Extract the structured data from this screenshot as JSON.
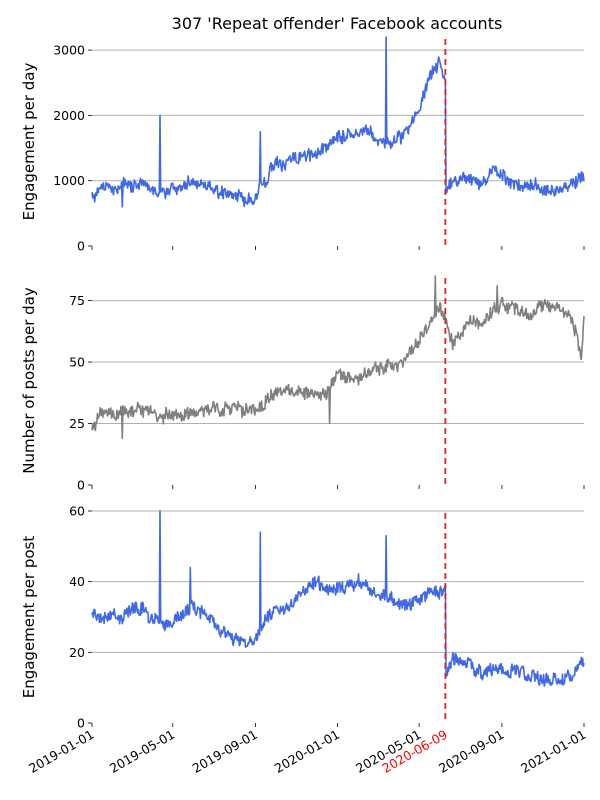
{
  "chart_data": [
    {
      "type": "line",
      "title": "307 'Repeat offender' Facebook accounts",
      "ylabel": "Engagement per day",
      "xlabel": "",
      "ylim": [
        0,
        3200
      ],
      "yticks": [
        0,
        1000,
        2000,
        3000
      ],
      "grid": "horizontal",
      "color": "#4169e1",
      "series": [
        {
          "x": [
            "2019-01-01",
            "2019-01-15",
            "2019-02-01",
            "2019-02-15",
            "2019-03-01",
            "2019-03-15",
            "2019-04-01",
            "2019-04-15",
            "2019-05-01",
            "2019-05-15",
            "2019-06-01",
            "2019-06-15",
            "2019-07-01",
            "2019-07-15",
            "2019-08-01",
            "2019-08-15",
            "2019-09-01",
            "2019-09-15",
            "2019-10-01",
            "2019-10-15",
            "2019-11-01",
            "2019-11-15",
            "2019-12-01",
            "2019-12-15",
            "2020-01-01",
            "2020-01-15",
            "2020-02-01",
            "2020-02-15",
            "2020-03-01",
            "2020-03-15",
            "2020-04-01",
            "2020-04-15",
            "2020-05-01",
            "2020-05-15",
            "2020-06-01",
            "2020-06-09",
            "2020-06-10",
            "2020-06-20",
            "2020-07-01",
            "2020-07-15",
            "2020-08-01",
            "2020-08-15",
            "2020-09-01",
            "2020-09-15",
            "2020-10-01",
            "2020-10-15",
            "2020-11-01",
            "2020-11-15",
            "2020-12-01",
            "2020-12-15",
            "2021-01-01"
          ],
          "values": [
            750,
            930,
            880,
            960,
            900,
            1000,
            900,
            820,
            860,
            900,
            1000,
            930,
            880,
            780,
            760,
            700,
            760,
            1000,
            1300,
            1250,
            1350,
            1400,
            1450,
            1500,
            1650,
            1700,
            1750,
            1800,
            1600,
            1550,
            1650,
            1800,
            2100,
            2600,
            2800,
            2450,
            800,
            1000,
            1000,
            1050,
            900,
            1150,
            1100,
            950,
            900,
            1000,
            850,
            900,
            850,
            950,
            1050
          ]
        }
      ],
      "spikes": [
        {
          "x": "2019-02-15",
          "value": 600
        },
        {
          "x": "2019-04-12",
          "value": 2000
        },
        {
          "x": "2019-09-08",
          "value": 1750
        },
        {
          "x": "2020-03-13",
          "value": 3200
        }
      ],
      "annotation": {
        "x": "2020-06-09",
        "style": "dashed",
        "color": "#d62728"
      }
    },
    {
      "type": "line",
      "ylabel": "Number of posts per day",
      "xlabel": "",
      "ylim": [
        0,
        85
      ],
      "yticks": [
        0,
        25,
        50,
        75
      ],
      "grid": "horizontal",
      "color": "#808080",
      "series": [
        {
          "x": [
            "2019-01-01",
            "2019-01-15",
            "2019-02-01",
            "2019-02-15",
            "2019-03-01",
            "2019-03-15",
            "2019-04-01",
            "2019-04-15",
            "2019-05-01",
            "2019-05-15",
            "2019-06-01",
            "2019-06-15",
            "2019-07-01",
            "2019-07-15",
            "2019-08-01",
            "2019-08-15",
            "2019-09-01",
            "2019-09-15",
            "2019-10-01",
            "2019-10-15",
            "2019-11-01",
            "2019-11-15",
            "2019-12-01",
            "2019-12-15",
            "2020-01-01",
            "2020-01-15",
            "2020-02-01",
            "2020-02-15",
            "2020-03-01",
            "2020-03-15",
            "2020-04-01",
            "2020-04-15",
            "2020-05-01",
            "2020-05-15",
            "2020-06-01",
            "2020-06-09",
            "2020-06-20",
            "2020-07-01",
            "2020-07-15",
            "2020-08-01",
            "2020-08-15",
            "2020-09-01",
            "2020-09-15",
            "2020-10-01",
            "2020-10-15",
            "2020-11-01",
            "2020-11-15",
            "2020-12-01",
            "2020-12-15",
            "2020-12-28",
            "2021-01-01"
          ],
          "values": [
            23,
            30,
            29,
            31,
            30,
            31,
            29,
            28,
            29,
            29,
            30,
            29,
            31,
            31,
            32,
            30,
            31,
            33,
            38,
            40,
            39,
            37,
            36,
            37,
            45,
            44,
            43,
            46,
            48,
            48,
            49,
            54,
            58,
            64,
            72,
            68,
            57,
            60,
            67,
            65,
            70,
            74,
            72,
            71,
            70,
            73,
            72,
            71,
            66,
            52,
            68
          ]
        }
      ],
      "spikes": [
        {
          "x": "2019-02-15",
          "value": 19
        },
        {
          "x": "2019-12-20",
          "value": 25
        },
        {
          "x": "2020-05-25",
          "value": 85
        },
        {
          "x": "2020-08-25",
          "value": 81
        }
      ],
      "annotation": {
        "x": "2020-06-09",
        "style": "dashed",
        "color": "#d62728"
      }
    },
    {
      "type": "line",
      "ylabel": "Engagement per post",
      "xlabel": "",
      "ylim": [
        0,
        60
      ],
      "yticks": [
        0,
        20,
        40,
        60
      ],
      "grid": "horizontal",
      "color": "#4169e1",
      "xticks": [
        "2019-01-01",
        "2019-05-01",
        "2019-09-01",
        "2020-01-01",
        "2020-05-01",
        "2020-09-01",
        "2021-01-01"
      ],
      "highlighted_xtick": {
        "label": "2020-06-09",
        "color": "#ff0000"
      },
      "series": [
        {
          "x": [
            "2019-01-01",
            "2019-01-15",
            "2019-02-01",
            "2019-02-15",
            "2019-03-01",
            "2019-03-15",
            "2019-04-01",
            "2019-04-15",
            "2019-05-01",
            "2019-05-15",
            "2019-06-01",
            "2019-06-15",
            "2019-07-01",
            "2019-07-15",
            "2019-08-01",
            "2019-08-15",
            "2019-09-01",
            "2019-09-15",
            "2019-10-01",
            "2019-10-15",
            "2019-11-01",
            "2019-11-15",
            "2019-12-01",
            "2019-12-15",
            "2020-01-01",
            "2020-01-15",
            "2020-02-01",
            "2020-02-15",
            "2020-03-01",
            "2020-03-15",
            "2020-04-01",
            "2020-04-15",
            "2020-05-01",
            "2020-05-15",
            "2020-06-01",
            "2020-06-09",
            "2020-06-10",
            "2020-06-20",
            "2020-07-01",
            "2020-07-15",
            "2020-08-01",
            "2020-08-15",
            "2020-09-01",
            "2020-09-15",
            "2020-10-01",
            "2020-10-15",
            "2020-11-01",
            "2020-11-15",
            "2020-12-01",
            "2020-12-15",
            "2020-12-28",
            "2021-01-01"
          ],
          "values": [
            32,
            30,
            31,
            29,
            33,
            32,
            30,
            28,
            29,
            30,
            33,
            31,
            28,
            26,
            24,
            22,
            24,
            30,
            33,
            31,
            35,
            38,
            40,
            38,
            38,
            39,
            40,
            38,
            37,
            36,
            33,
            33,
            35,
            37,
            37,
            37,
            13,
            18,
            18,
            17,
            14,
            15,
            16,
            15,
            14,
            13,
            12,
            12,
            13,
            13,
            18,
            16
          ]
        }
      ],
      "spikes": [
        {
          "x": "2019-04-12",
          "value": 60
        },
        {
          "x": "2019-05-27",
          "value": 44
        },
        {
          "x": "2019-09-08",
          "value": 54
        },
        {
          "x": "2020-03-13",
          "value": 53
        }
      ],
      "annotation": {
        "x": "2020-06-09",
        "style": "dashed",
        "color": "#d62728"
      }
    }
  ]
}
